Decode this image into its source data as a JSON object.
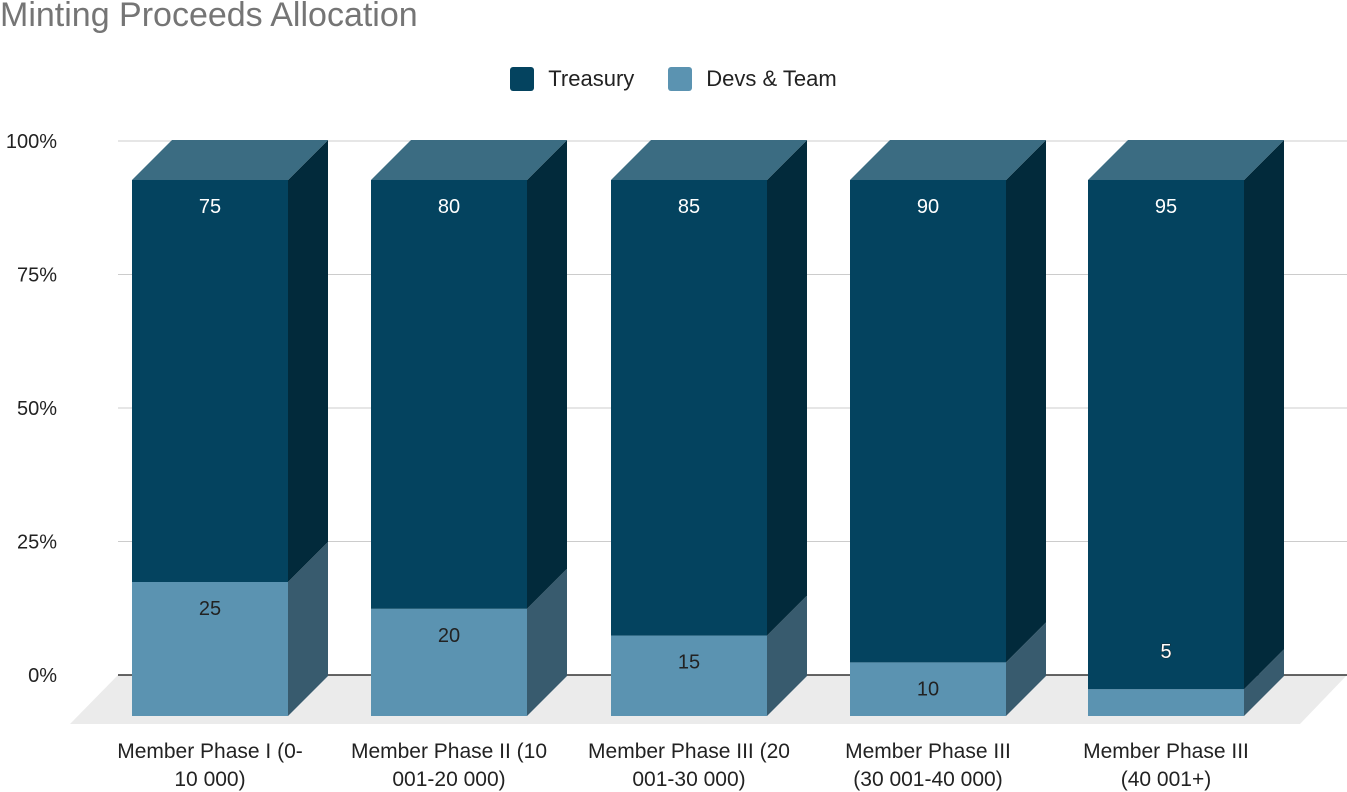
{
  "chart_data": {
    "type": "bar",
    "stacked": true,
    "normalized": true,
    "three_d": true,
    "title": "Minting Proceeds Allocation",
    "categories": [
      [
        "Member Phase I (0-",
        "10 000)"
      ],
      [
        "Member Phase II (10",
        "001-20 000)"
      ],
      [
        "Member Phase III (20",
        "001-30 000)"
      ],
      [
        "Member Phase III",
        "(30 001-40 000)"
      ],
      [
        "Member Phase III",
        "(40 001+)"
      ]
    ],
    "series": [
      {
        "name": "Devs & Team",
        "values": [
          25,
          20,
          15,
          10,
          5
        ],
        "color": "#5b93b1",
        "label_color": "#222222"
      },
      {
        "name": "Treasury",
        "values": [
          75,
          80,
          85,
          90,
          95
        ],
        "color": "#04435f",
        "label_color": "#ffffff"
      }
    ],
    "legend_order": [
      "Treasury",
      "Devs & Team"
    ],
    "y_ticks": [
      "0%",
      "25%",
      "50%",
      "75%",
      "100%"
    ],
    "ylim": [
      0,
      100
    ],
    "grid": true,
    "legend_position": "top"
  }
}
